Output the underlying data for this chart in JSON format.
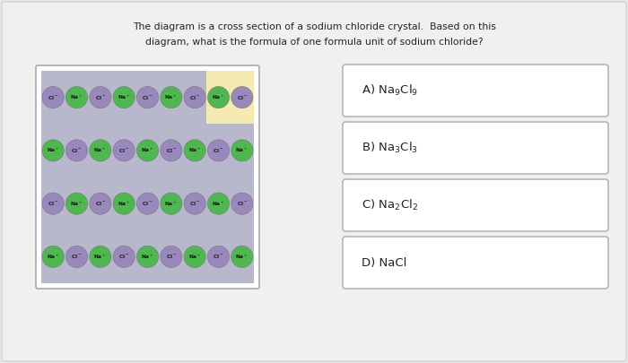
{
  "title_line1": "The diagram is a cross section of a sodium chloride crystal.  Based on this",
  "title_line2": "diagram, what is the formula of one formula unit of sodium chloride?",
  "fig_bg": "#e8e8e8",
  "page_bg": "#f0f0f0",
  "crystal_bg": "#b8b8cc",
  "highlight_color": "#f5eab0",
  "green_color": "#4db84d",
  "purple_color": "#9988bb",
  "rows": 4,
  "cols": 9,
  "option_texts": [
    "A) Na$_9$Cl$_9$",
    "B) Na$_3$Cl$_3$",
    "C) Na$_2$Cl$_2$",
    "D) NaCl"
  ]
}
